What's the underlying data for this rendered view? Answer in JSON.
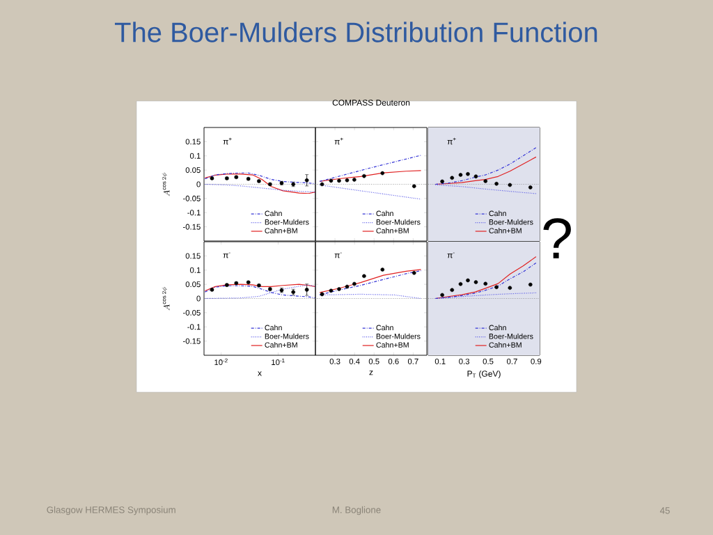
{
  "chart_data": [
    {
      "type": "line",
      "ylabel": "A^{\\cos 2\\phi}",
      "log": "x",
      "xlim": [
        0.005,
        0.45
      ],
      "ylim": [
        -0.2,
        0.2
      ],
      "yticks": [
        -0.15,
        -0.1,
        -0.05,
        0,
        0.05,
        0.1,
        0.15
      ],
      "tick_labels": "y",
      "legend": "bottom right",
      "annotations": [
        "π$^{+}$"
      ],
      "ref_lines": [
        {
          "axis": "y",
          "value": 0,
          "color": "#808080",
          "line_style": "dotted"
        }
      ],
      "series": [
        {
          "name": "Cahn",
          "type": "line",
          "line_style": "dashed",
          "color": "#3434d6",
          "x": [
            0.0052,
            0.0079,
            0.0126,
            0.0202,
            0.0294,
            0.0471,
            0.0755,
            0.121,
            0.193,
            0.309,
            0.45
          ],
          "values": [
            0.019,
            0.033,
            0.0375,
            0.04,
            0.04,
            0.031,
            0.017,
            0.01,
            0.007,
            0.005,
            0.0025
          ]
        },
        {
          "name": "Boer-Mulders",
          "type": "line",
          "line_style": "dotted",
          "color": "#4a4ae6",
          "x": [
            0.0052,
            0.0126,
            0.0222,
            0.0471,
            0.121,
            0.233,
            0.45
          ],
          "values": [
            0,
            -0.0025,
            -0.006,
            -0.0125,
            -0.021,
            -0.025,
            -0.0275
          ]
        },
        {
          "name": "Cahn+BM",
          "type": "line",
          "line_style": "solid",
          "color": "#e02020",
          "x": [
            0.0052,
            0.0079,
            0.0126,
            0.0222,
            0.0356,
            0.0518,
            0.0755,
            0.121,
            0.233,
            0.34,
            0.45
          ],
          "values": [
            0.0225,
            0.032,
            0.036,
            0.036,
            0.033,
            0.017,
            -0.008,
            -0.023,
            -0.031,
            -0.0325,
            -0.0275
          ]
        },
        {
          "type": "scatter",
          "color": "#000000",
          "x": [
            0.0069,
            0.0126,
            0.0184,
            0.03,
            0.046,
            0.072,
            0.115,
            0.184,
            0.318
          ],
          "values": [
            0.021,
            0.021,
            0.025,
            0.019,
            0.011,
            0,
            0.004,
            0,
            0.014
          ],
          "errors": [
            0.004,
            0.004,
            0.004,
            0.004,
            0.004,
            0.004,
            0.006,
            0.008,
            0.02
          ]
        }
      ]
    },
    {
      "type": "line",
      "title": "COMPASS Deuteron",
      "xlim": [
        0.2,
        0.77
      ],
      "ylim": [
        -0.2,
        0.2
      ],
      "xticks": [
        0.3,
        0.4,
        0.5,
        0.6,
        0.7
      ],
      "yticks": [
        -0.15,
        -0.1,
        -0.05,
        0,
        0.05,
        0.1,
        0.15
      ],
      "tick_labels": false,
      "legend": "bottom right",
      "annotations": [
        "π$^{+}$"
      ],
      "ref_lines": [
        {
          "axis": "y",
          "value": 0,
          "color": "#808080",
          "line_style": "dotted"
        }
      ],
      "series": [
        {
          "name": "Cahn",
          "type": "line",
          "line_style": "dashed",
          "color": "#3434d6",
          "x": [
            0.222,
            0.478,
            0.74
          ],
          "values": [
            0.01,
            0.057,
            0.102
          ]
        },
        {
          "name": "Boer-Mulders",
          "type": "line",
          "line_style": "dotted",
          "color": "#4a4ae6",
          "x": [
            0.222,
            0.431,
            0.74
          ],
          "values": [
            -0.0025,
            -0.023,
            -0.0525
          ]
        },
        {
          "name": "Cahn+BM",
          "type": "line",
          "line_style": "solid",
          "color": "#e02020",
          "x": [
            0.222,
            0.315,
            0.431,
            0.548,
            0.664,
            0.74
          ],
          "values": [
            0.01,
            0.019,
            0.0275,
            0.04,
            0.046,
            0.0483
          ]
        },
        {
          "type": "scatter",
          "color": "#000000",
          "x": [
            0.234,
            0.28,
            0.321,
            0.362,
            0.399,
            0.449,
            0.543,
            0.705
          ],
          "values": [
            0,
            0.0125,
            0.0125,
            0.014,
            0.016,
            0.029,
            0.039,
            -0.007
          ]
        }
      ]
    },
    {
      "type": "line",
      "xlim": [
        0,
        0.93
      ],
      "ylim": [
        -0.2,
        0.2
      ],
      "xticks": [
        0.1,
        0.3,
        0.5,
        0.7,
        0.9
      ],
      "yticks": [
        -0.15,
        -0.1,
        -0.05,
        0,
        0.05,
        0.1,
        0.15
      ],
      "tick_labels": false,
      "legend": "bottom right",
      "annotations": [
        "π$^{+}$"
      ],
      "bands": [
        {
          "axis": "x",
          "from": 0,
          "to": 0.93,
          "color": "#dfe1ed"
        }
      ],
      "ref_lines": [
        {
          "axis": "y",
          "value": 0,
          "color": "#808080",
          "line_style": "dotted"
        }
      ],
      "series": [
        {
          "name": "Cahn",
          "type": "line",
          "line_style": "dashed",
          "color": "#3434d6",
          "x": [
            0.06,
            0.165,
            0.279,
            0.393,
            0.478,
            0.583,
            0.682,
            0.792,
            0.9
          ],
          "values": [
            0,
            0.004,
            0.0125,
            0.025,
            0.033,
            0.05,
            0.071,
            0.1,
            0.129
          ]
        },
        {
          "name": "Boer-Mulders",
          "type": "line",
          "line_style": "dotted",
          "color": "#4a4ae6",
          "x": [
            0.06,
            0.279,
            0.478,
            0.682,
            0.9
          ],
          "values": [
            -0.002,
            -0.008,
            -0.017,
            -0.025,
            -0.033
          ]
        },
        {
          "name": "Cahn+BM",
          "type": "line",
          "line_style": "solid",
          "color": "#e02020",
          "x": [
            0.06,
            0.165,
            0.279,
            0.393,
            0.478,
            0.583,
            0.682,
            0.792,
            0.9
          ],
          "values": [
            0,
            0.0025,
            0.006,
            0.0125,
            0.017,
            0.0275,
            0.046,
            0.071,
            0.096
          ]
        },
        {
          "type": "scatter",
          "color": "#000000",
          "x": [
            0.117,
            0.199,
            0.27,
            0.331,
            0.398,
            0.478,
            0.57,
            0.682,
            0.853
          ],
          "values": [
            0.01,
            0.0225,
            0.033,
            0.036,
            0.0275,
            0.011,
            0.0017,
            -0.0025,
            -0.011
          ]
        }
      ]
    },
    {
      "type": "line",
      "xlabel": "x",
      "ylabel": "A^{\\cos 2\\phi}",
      "log": "x",
      "xlim": [
        0.005,
        0.45
      ],
      "ylim": [
        -0.2,
        0.2
      ],
      "xticks": [
        {
          "value": 0.01,
          "label": "10$^{-2}$"
        },
        {
          "value": 0.1,
          "label": "10$^{-1}$"
        }
      ],
      "yticks": [
        -0.15,
        -0.1,
        -0.05,
        0,
        0.05,
        0.1,
        0.15
      ],
      "legend": "bottom right",
      "annotations": [
        "π$^{-}$"
      ],
      "ref_lines": [
        {
          "axis": "y",
          "value": 0,
          "color": "#808080",
          "line_style": "dotted"
        }
      ],
      "series": [
        {
          "name": "Cahn",
          "type": "line",
          "line_style": "dashed",
          "color": "#3434d6",
          "x": [
            0.0052,
            0.0079,
            0.0126,
            0.0222,
            0.0356,
            0.0518,
            0.0755,
            0.121,
            0.233,
            0.34,
            0.45
          ],
          "values": [
            0.023,
            0.04,
            0.045,
            0.045,
            0.043,
            0.033,
            0.021,
            0.0125,
            0.008,
            0.006,
            0.002
          ]
        },
        {
          "name": "Boer-Mulders",
          "type": "line",
          "line_style": "dotted",
          "color": "#4a4ae6",
          "x": [
            0.0052,
            0.0222,
            0.0471,
            0.0755,
            0.121,
            0.233,
            0.34,
            0.45
          ],
          "values": [
            0,
            0.002,
            0.008,
            0.021,
            0.033,
            0.043,
            0.048,
            0.042
          ]
        },
        {
          "name": "Cahn+BM",
          "type": "line",
          "line_style": "solid",
          "color": "#e02020",
          "x": [
            0.0052,
            0.0079,
            0.0126,
            0.0222,
            0.0356,
            0.0518,
            0.0755,
            0.121,
            0.233,
            0.34,
            0.45
          ],
          "values": [
            0.027,
            0.042,
            0.048,
            0.05,
            0.048,
            0.042,
            0.042,
            0.046,
            0.05,
            0.046,
            0.042
          ]
        },
        {
          "type": "scatter",
          "color": "#000000",
          "x": [
            0.0069,
            0.0126,
            0.0184,
            0.03,
            0.046,
            0.072,
            0.115,
            0.184,
            0.318
          ],
          "values": [
            0.031,
            0.0475,
            0.054,
            0.057,
            0.046,
            0.033,
            0.029,
            0.0225,
            0.031
          ],
          "errors": [
            0.004,
            0.004,
            0.004,
            0.004,
            0.004,
            0.005,
            0.008,
            0.01,
            0.02
          ]
        }
      ]
    },
    {
      "type": "line",
      "xlabel": "z",
      "xlim": [
        0.2,
        0.77
      ],
      "ylim": [
        -0.2,
        0.2
      ],
      "xticks": [
        0.3,
        0.4,
        0.5,
        0.6,
        0.7
      ],
      "yticks": [
        -0.15,
        -0.1,
        -0.05,
        0,
        0.05,
        0.1,
        0.15
      ],
      "tick_labels": "x",
      "legend": "bottom right",
      "annotations": [
        "π$^{-}$"
      ],
      "ref_lines": [
        {
          "axis": "y",
          "value": 0,
          "color": "#808080",
          "line_style": "dotted"
        }
      ],
      "series": [
        {
          "name": "Cahn",
          "type": "line",
          "line_style": "dashed",
          "color": "#3434d6",
          "x": [
            0.222,
            0.315,
            0.431,
            0.548,
            0.664,
            0.74
          ],
          "values": [
            0.0125,
            0.029,
            0.046,
            0.067,
            0.0875,
            0.098
          ]
        },
        {
          "name": "Boer-Mulders",
          "type": "line",
          "line_style": "dotted",
          "color": "#4a4ae6",
          "x": [
            0.222,
            0.431,
            0.605,
            0.74
          ],
          "values": [
            0.0125,
            0.015,
            0.0125,
            0
          ]
        },
        {
          "name": "Cahn+BM",
          "type": "line",
          "line_style": "solid",
          "color": "#e02020",
          "x": [
            0.222,
            0.315,
            0.431,
            0.548,
            0.664,
            0.74
          ],
          "values": [
            0.021,
            0.035,
            0.056,
            0.082,
            0.096,
            0.102
          ]
        },
        {
          "type": "scatter",
          "color": "#000000",
          "x": [
            0.234,
            0.28,
            0.321,
            0.362,
            0.399,
            0.449,
            0.543,
            0.705
          ],
          "values": [
            0.015,
            0.0275,
            0.0333,
            0.0417,
            0.0517,
            0.079,
            0.1017,
            0.09
          ]
        }
      ]
    },
    {
      "type": "line",
      "xlabel": "P$_{T}$ (GeV)",
      "xlim": [
        0,
        0.93
      ],
      "ylim": [
        -0.2,
        0.2
      ],
      "xticks": [
        0.1,
        0.3,
        0.5,
        0.7,
        0.9
      ],
      "yticks": [
        -0.15,
        -0.1,
        -0.05,
        0,
        0.05,
        0.1,
        0.15
      ],
      "tick_labels": "x",
      "legend": "bottom right",
      "annotations": [
        "π$^{-}$"
      ],
      "bands": [
        {
          "axis": "x",
          "from": 0,
          "to": 0.93,
          "color": "#dfe1ed"
        }
      ],
      "ref_lines": [
        {
          "axis": "y",
          "value": 0,
          "color": "#808080",
          "line_style": "dotted"
        }
      ],
      "series": [
        {
          "name": "Cahn",
          "type": "line",
          "line_style": "dashed",
          "color": "#3434d6",
          "x": [
            0.06,
            0.165,
            0.279,
            0.393,
            0.478,
            0.583,
            0.682,
            0.792,
            0.9
          ],
          "values": [
            0,
            0.004,
            0.01,
            0.019,
            0.029,
            0.044,
            0.069,
            0.094,
            0.125
          ]
        },
        {
          "name": "Boer-Mulders",
          "type": "line",
          "line_style": "dotted",
          "color": "#4a4ae6",
          "x": [
            0.06,
            0.279,
            0.478,
            0.682,
            0.9
          ],
          "values": [
            0,
            0.0067,
            0.0125,
            0.0167,
            0.02
          ]
        },
        {
          "name": "Cahn+BM",
          "type": "line",
          "line_style": "solid",
          "color": "#e02020",
          "x": [
            0.06,
            0.165,
            0.279,
            0.393,
            0.478,
            0.583,
            0.682,
            0.792,
            0.9
          ],
          "values": [
            0,
            0.0067,
            0.0133,
            0.023,
            0.036,
            0.0525,
            0.086,
            0.115,
            0.147
          ]
        },
        {
          "type": "scatter",
          "color": "#000000",
          "x": [
            0.117,
            0.199,
            0.27,
            0.331,
            0.398,
            0.478,
            0.57,
            0.682,
            0.853
          ],
          "values": [
            0.0125,
            0.03,
            0.051,
            0.064,
            0.0575,
            0.052,
            0.04,
            0.0375,
            0.049
          ]
        }
      ]
    },
    {
      "type": "other",
      "title": "The Boer-Mulders Distribution Function",
      "annotations": [
        "Glasgow HERMES Symposium",
        "M. Boglione",
        "45",
        "?"
      ]
    }
  ]
}
